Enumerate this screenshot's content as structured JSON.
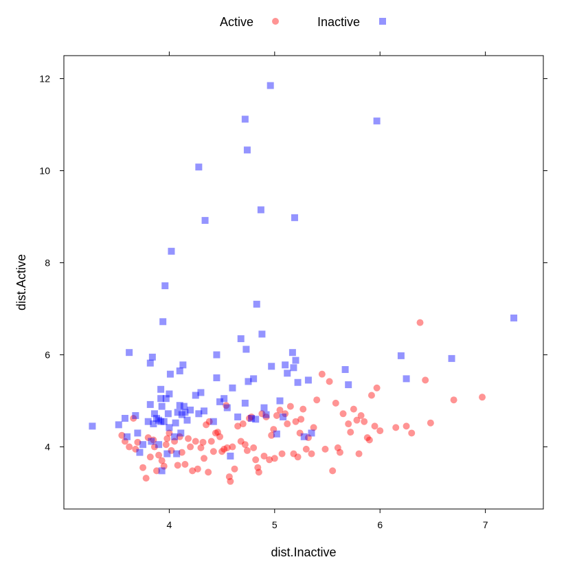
{
  "chart_data": {
    "type": "scatter",
    "title": "",
    "xlabel": "dist.Inactive",
    "ylabel": "dist.Active",
    "xlim": [
      3.0,
      7.55
    ],
    "ylim": [
      2.65,
      12.5
    ],
    "x_ticks": [
      4,
      5,
      6,
      7
    ],
    "y_ticks": [
      4,
      6,
      8,
      10,
      12
    ],
    "grid": false,
    "legend_position": "top",
    "series": [
      {
        "name": "Active",
        "marker": "circle",
        "color": "#ff0000",
        "opacity": 0.42,
        "points": [
          [
            3.55,
            4.25
          ],
          [
            3.58,
            4.12
          ],
          [
            3.62,
            4.0
          ],
          [
            3.66,
            4.62
          ],
          [
            3.68,
            3.95
          ],
          [
            3.7,
            4.1
          ],
          [
            3.75,
            3.55
          ],
          [
            3.78,
            3.32
          ],
          [
            3.8,
            4.2
          ],
          [
            3.82,
            3.78
          ],
          [
            3.85,
            4.15
          ],
          [
            3.86,
            4.0
          ],
          [
            3.88,
            3.48
          ],
          [
            3.9,
            3.82
          ],
          [
            3.93,
            3.7
          ],
          [
            3.95,
            3.58
          ],
          [
            3.97,
            4.05
          ],
          [
            3.98,
            4.18
          ],
          [
            4.0,
            4.3
          ],
          [
            4.02,
            3.92
          ],
          [
            4.05,
            4.12
          ],
          [
            4.08,
            3.6
          ],
          [
            4.1,
            4.22
          ],
          [
            4.12,
            3.88
          ],
          [
            4.15,
            3.62
          ],
          [
            4.18,
            4.18
          ],
          [
            4.2,
            4.0
          ],
          [
            4.22,
            3.48
          ],
          [
            4.25,
            4.12
          ],
          [
            4.27,
            3.52
          ],
          [
            4.3,
            3.98
          ],
          [
            4.32,
            4.1
          ],
          [
            4.33,
            3.75
          ],
          [
            4.35,
            4.48
          ],
          [
            4.37,
            3.45
          ],
          [
            4.38,
            4.55
          ],
          [
            4.4,
            4.12
          ],
          [
            4.42,
            3.9
          ],
          [
            4.44,
            4.3
          ],
          [
            4.46,
            4.32
          ],
          [
            4.48,
            4.22
          ],
          [
            4.5,
            3.9
          ],
          [
            4.52,
            3.95
          ],
          [
            4.54,
            4.9
          ],
          [
            4.55,
            3.98
          ],
          [
            4.57,
            3.35
          ],
          [
            4.58,
            3.25
          ],
          [
            4.6,
            4.0
          ],
          [
            4.62,
            3.52
          ],
          [
            4.65,
            4.45
          ],
          [
            4.68,
            4.12
          ],
          [
            4.7,
            4.5
          ],
          [
            4.72,
            4.05
          ],
          [
            4.74,
            3.92
          ],
          [
            4.76,
            4.62
          ],
          [
            4.78,
            4.65
          ],
          [
            4.8,
            3.98
          ],
          [
            4.82,
            3.72
          ],
          [
            4.84,
            3.55
          ],
          [
            4.85,
            3.45
          ],
          [
            4.88,
            4.72
          ],
          [
            4.9,
            3.8
          ],
          [
            4.92,
            4.65
          ],
          [
            4.95,
            3.72
          ],
          [
            4.97,
            4.25
          ],
          [
            4.99,
            4.38
          ],
          [
            5.0,
            3.75
          ],
          [
            5.02,
            4.68
          ],
          [
            5.05,
            4.8
          ],
          [
            5.07,
            3.85
          ],
          [
            5.1,
            4.72
          ],
          [
            5.12,
            4.5
          ],
          [
            5.15,
            4.88
          ],
          [
            5.18,
            3.85
          ],
          [
            5.2,
            4.55
          ],
          [
            5.22,
            3.78
          ],
          [
            5.24,
            4.3
          ],
          [
            5.25,
            4.6
          ],
          [
            5.27,
            4.82
          ],
          [
            5.3,
            3.95
          ],
          [
            5.32,
            4.2
          ],
          [
            5.35,
            3.85
          ],
          [
            5.37,
            4.42
          ],
          [
            5.4,
            5.02
          ],
          [
            5.45,
            5.58
          ],
          [
            5.48,
            3.95
          ],
          [
            5.52,
            5.42
          ],
          [
            5.55,
            3.48
          ],
          [
            5.58,
            4.95
          ],
          [
            5.6,
            3.98
          ],
          [
            5.62,
            3.88
          ],
          [
            5.65,
            4.72
          ],
          [
            5.7,
            4.5
          ],
          [
            5.72,
            4.32
          ],
          [
            5.75,
            4.82
          ],
          [
            5.78,
            4.58
          ],
          [
            5.8,
            3.85
          ],
          [
            5.82,
            4.68
          ],
          [
            5.85,
            4.55
          ],
          [
            5.88,
            4.2
          ],
          [
            5.9,
            4.15
          ],
          [
            5.92,
            5.12
          ],
          [
            5.95,
            4.45
          ],
          [
            5.97,
            5.28
          ],
          [
            6.0,
            4.35
          ],
          [
            6.15,
            4.42
          ],
          [
            6.25,
            4.45
          ],
          [
            6.3,
            4.3
          ],
          [
            6.38,
            6.7
          ],
          [
            6.43,
            5.45
          ],
          [
            6.48,
            4.52
          ],
          [
            6.7,
            5.02
          ],
          [
            6.97,
            5.08
          ]
        ]
      },
      {
        "name": "Inactive",
        "marker": "square",
        "color": "#0000ff",
        "opacity": 0.42,
        "points": [
          [
            3.27,
            4.45
          ],
          [
            3.52,
            4.48
          ],
          [
            3.58,
            4.62
          ],
          [
            3.6,
            4.22
          ],
          [
            3.62,
            6.05
          ],
          [
            3.68,
            4.68
          ],
          [
            3.7,
            4.3
          ],
          [
            3.72,
            3.88
          ],
          [
            3.75,
            4.05
          ],
          [
            3.8,
            4.55
          ],
          [
            3.82,
            4.92
          ],
          [
            3.82,
            5.82
          ],
          [
            3.83,
            4.12
          ],
          [
            3.84,
            5.95
          ],
          [
            3.85,
            4.5
          ],
          [
            3.86,
            4.72
          ],
          [
            3.88,
            4.62
          ],
          [
            3.9,
            4.58
          ],
          [
            3.9,
            4.05
          ],
          [
            3.92,
            5.25
          ],
          [
            3.92,
            5.05
          ],
          [
            3.92,
            4.55
          ],
          [
            3.93,
            4.88
          ],
          [
            3.93,
            3.48
          ],
          [
            3.94,
            6.72
          ],
          [
            3.95,
            4.55
          ],
          [
            3.96,
            7.5
          ],
          [
            3.97,
            5.05
          ],
          [
            3.98,
            3.85
          ],
          [
            3.99,
            4.72
          ],
          [
            4.0,
            5.15
          ],
          [
            4.0,
            4.42
          ],
          [
            4.01,
            5.58
          ],
          [
            4.02,
            8.25
          ],
          [
            4.05,
            4.22
          ],
          [
            4.06,
            4.52
          ],
          [
            4.07,
            3.85
          ],
          [
            4.08,
            4.75
          ],
          [
            4.1,
            5.65
          ],
          [
            4.1,
            4.9
          ],
          [
            4.11,
            4.3
          ],
          [
            4.12,
            4.7
          ],
          [
            4.13,
            5.78
          ],
          [
            4.14,
            4.88
          ],
          [
            4.15,
            4.75
          ],
          [
            4.17,
            4.58
          ],
          [
            4.2,
            4.8
          ],
          [
            4.25,
            5.12
          ],
          [
            4.28,
            4.72
          ],
          [
            4.28,
            10.08
          ],
          [
            4.3,
            5.18
          ],
          [
            4.33,
            4.78
          ],
          [
            4.34,
            8.92
          ],
          [
            4.42,
            4.55
          ],
          [
            4.45,
            6.0
          ],
          [
            4.45,
            5.5
          ],
          [
            4.48,
            4.98
          ],
          [
            4.52,
            5.05
          ],
          [
            4.55,
            4.85
          ],
          [
            4.58,
            3.8
          ],
          [
            4.6,
            5.28
          ],
          [
            4.65,
            4.65
          ],
          [
            4.68,
            6.35
          ],
          [
            4.72,
            11.12
          ],
          [
            4.72,
            4.95
          ],
          [
            4.73,
            6.12
          ],
          [
            4.74,
            10.45
          ],
          [
            4.75,
            5.42
          ],
          [
            4.78,
            4.62
          ],
          [
            4.8,
            5.48
          ],
          [
            4.82,
            4.6
          ],
          [
            4.83,
            7.1
          ],
          [
            4.87,
            9.15
          ],
          [
            4.88,
            6.45
          ],
          [
            4.9,
            4.85
          ],
          [
            4.92,
            4.7
          ],
          [
            4.96,
            11.85
          ],
          [
            4.97,
            5.75
          ],
          [
            5.02,
            4.28
          ],
          [
            5.05,
            5.0
          ],
          [
            5.08,
            4.65
          ],
          [
            5.1,
            5.78
          ],
          [
            5.12,
            5.6
          ],
          [
            5.17,
            6.05
          ],
          [
            5.18,
            5.72
          ],
          [
            5.19,
            8.98
          ],
          [
            5.2,
            5.88
          ],
          [
            5.22,
            5.4
          ],
          [
            5.28,
            4.22
          ],
          [
            5.32,
            5.45
          ],
          [
            5.35,
            4.3
          ],
          [
            5.67,
            5.68
          ],
          [
            5.7,
            5.35
          ],
          [
            5.97,
            11.08
          ],
          [
            6.2,
            5.98
          ],
          [
            6.25,
            5.48
          ],
          [
            6.68,
            5.92
          ],
          [
            7.27,
            6.8
          ]
        ]
      }
    ]
  }
}
